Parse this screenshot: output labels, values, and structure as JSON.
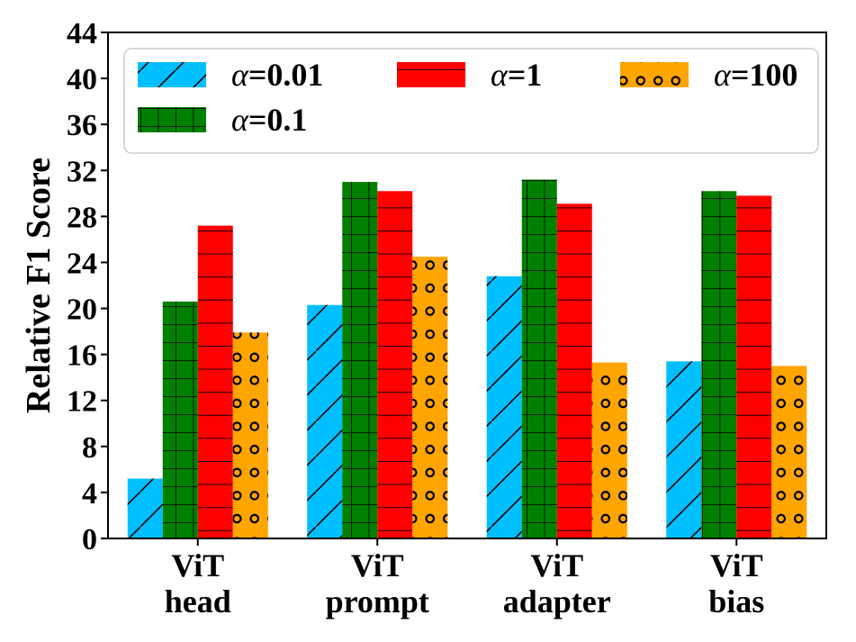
{
  "chart_data": {
    "type": "bar",
    "title": "",
    "xlabel": "",
    "ylabel": "Relative F1 Score",
    "ylim": [
      0,
      44
    ],
    "yticks": [
      0,
      4,
      8,
      12,
      16,
      20,
      24,
      28,
      32,
      36,
      40,
      44
    ],
    "grid": false,
    "legend_position": "top",
    "categories": [
      [
        "ViT",
        "head"
      ],
      [
        "ViT",
        "prompt"
      ],
      [
        "ViT",
        "adapter"
      ],
      [
        "ViT",
        "bias"
      ]
    ],
    "series": [
      {
        "name": "α=0.01",
        "symbol": "α",
        "suffix": "=0.01",
        "color": "#00BFFF",
        "hatch": "diagonal",
        "values": [
          5.2,
          20.3,
          22.8,
          15.4
        ]
      },
      {
        "name": "α=0.1",
        "symbol": "α",
        "suffix": "=0.1",
        "color": "#008000",
        "hatch": "grid",
        "values": [
          20.6,
          31.0,
          31.2,
          30.2
        ]
      },
      {
        "name": "α=1",
        "symbol": "α",
        "suffix": "=1",
        "color": "#FF0000",
        "hatch": "horizontal",
        "values": [
          27.2,
          30.2,
          29.1,
          29.8
        ]
      },
      {
        "name": "α=100",
        "symbol": "α",
        "suffix": "=100",
        "color": "#FFA500",
        "hatch": "circles",
        "values": [
          17.9,
          24.5,
          15.3,
          15.0
        ]
      }
    ]
  }
}
